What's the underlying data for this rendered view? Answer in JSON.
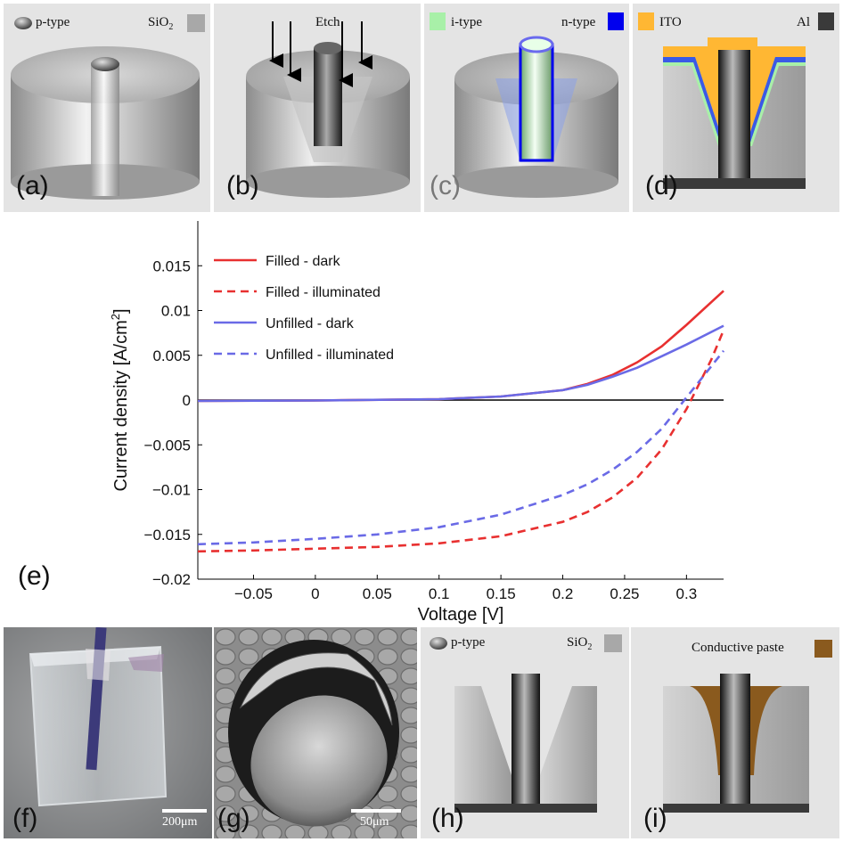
{
  "panels": {
    "a": {
      "label": "(a)",
      "legend_left": "p-type",
      "legend_right_main": "SiO",
      "legend_right_sub": "2"
    },
    "b": {
      "label": "(b)",
      "arrow_label": "Etch"
    },
    "c": {
      "label": "(c)",
      "legend_left": "i-type",
      "legend_right": "n-type"
    },
    "d": {
      "label": "(d)",
      "legend_left": "ITO",
      "legend_right": "Al"
    },
    "e": {
      "label": "(e)"
    },
    "f": {
      "label": "(f)",
      "scale_label": "200μm"
    },
    "g": {
      "label": "(g)",
      "scale_label": "50μm"
    },
    "h": {
      "label": "(h)",
      "legend_left": "p-type",
      "legend_right_main": "SiO",
      "legend_right_sub": "2"
    },
    "i": {
      "label": "(i)",
      "legend_right": "Conductive paste"
    }
  },
  "colors": {
    "i_type": "#a8f0a8",
    "n_type": "#0000ee",
    "ito": "#ffb733",
    "al": "#3a3a3a",
    "paste": "#8a5a1e",
    "filled": "#e83030",
    "unfilled": "#6a6ae6"
  },
  "chart_data": {
    "type": "line",
    "xlabel": "Voltage [V]",
    "ylabel_main": "Current density [A/cm",
    "ylabel_sup": "2",
    "ylabel_close": "]",
    "xlim": [
      -0.095,
      0.33
    ],
    "ylim": [
      -0.02,
      0.02
    ],
    "xticks": [
      -0.05,
      0,
      0.05,
      0.1,
      0.15,
      0.2,
      0.25,
      0.3
    ],
    "xtick_labels": [
      "−0.05",
      "0",
      "0.05",
      "0.1",
      "0.15",
      "0.2",
      "0.25",
      "0.3"
    ],
    "yticks": [
      -0.02,
      -0.015,
      -0.01,
      -0.005,
      0,
      0.005,
      0.01,
      0.015
    ],
    "ytick_labels": [
      "−0.02",
      "−0.015",
      "−0.01",
      "−0.005",
      "0",
      "0.005",
      "0.01",
      "0.015"
    ],
    "legend_position": "top-left",
    "series": [
      {
        "name": "Filled - dark",
        "style": "solid",
        "color": "#e83030",
        "x": [
          -0.095,
          0.0,
          0.1,
          0.15,
          0.2,
          0.22,
          0.24,
          0.26,
          0.28,
          0.3,
          0.33
        ],
        "y": [
          -0.0001,
          -5e-05,
          0.0001,
          0.0004,
          0.0011,
          0.0018,
          0.0028,
          0.0042,
          0.006,
          0.0084,
          0.0122
        ]
      },
      {
        "name": "Filled - illuminated",
        "style": "dashed",
        "color": "#e83030",
        "x": [
          -0.095,
          -0.05,
          0.0,
          0.05,
          0.1,
          0.15,
          0.2,
          0.22,
          0.24,
          0.26,
          0.28,
          0.3,
          0.32,
          0.33
        ],
        "y": [
          -0.0169,
          -0.0168,
          -0.0166,
          -0.0164,
          -0.016,
          -0.0152,
          -0.0136,
          -0.0125,
          -0.0109,
          -0.0087,
          -0.0055,
          -0.001,
          0.0045,
          0.0078
        ]
      },
      {
        "name": "Unfilled - dark",
        "style": "solid",
        "color": "#6a6ae6",
        "x": [
          -0.095,
          0.0,
          0.1,
          0.15,
          0.2,
          0.22,
          0.24,
          0.26,
          0.28,
          0.3,
          0.33
        ],
        "y": [
          -0.0001,
          -5e-05,
          0.0001,
          0.0004,
          0.0011,
          0.0017,
          0.0026,
          0.0036,
          0.0049,
          0.0062,
          0.0083
        ]
      },
      {
        "name": "Unfilled - illuminated",
        "style": "dashed",
        "color": "#6a6ae6",
        "x": [
          -0.095,
          -0.05,
          0.0,
          0.05,
          0.1,
          0.15,
          0.2,
          0.22,
          0.24,
          0.26,
          0.28,
          0.3,
          0.33
        ],
        "y": [
          -0.0161,
          -0.0159,
          -0.0155,
          -0.015,
          -0.0142,
          -0.0128,
          -0.0106,
          -0.0094,
          -0.0078,
          -0.0058,
          -0.0032,
          0.0003,
          0.0055
        ]
      }
    ]
  }
}
